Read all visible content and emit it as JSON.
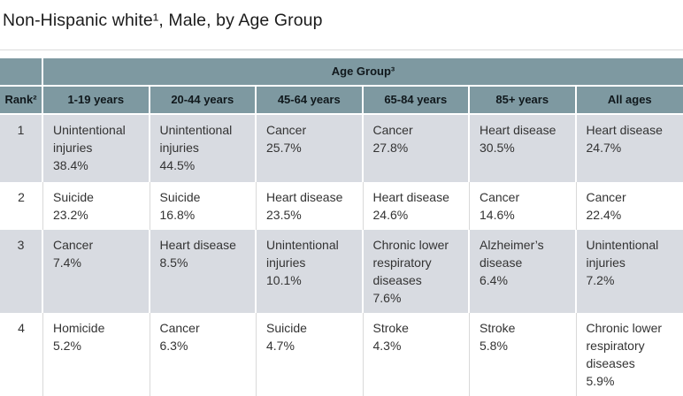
{
  "title": "Non-Hispanic white¹, Male, by Age Group",
  "colors": {
    "header_bg": "#7E99A1",
    "alt_row_bg": "#D8DBE1",
    "row_bg": "#FFFFFF",
    "body_text": "#333333",
    "header_text": "#10181C",
    "divider": "#DCDCDC"
  },
  "chart_data": {
    "type": "table",
    "title": "Non-Hispanic white¹, Male, by Age Group",
    "group_header": "Age Group³",
    "rank_header": "Rank²",
    "age_columns": [
      "1-19 years",
      "20-44 years",
      "45-64 years",
      "65-84 years",
      "85+ years",
      "All ages"
    ],
    "rows": [
      {
        "rank": "1",
        "cells": [
          {
            "cause": "Unintentional injuries",
            "pct": "38.4%"
          },
          {
            "cause": "Unintentional injuries",
            "pct": "44.5%"
          },
          {
            "cause": "Cancer",
            "pct": "25.7%"
          },
          {
            "cause": "Cancer",
            "pct": "27.8%"
          },
          {
            "cause": "Heart disease",
            "pct": "30.5%"
          },
          {
            "cause": "Heart disease",
            "pct": "24.7%"
          }
        ]
      },
      {
        "rank": "2",
        "cells": [
          {
            "cause": "Suicide",
            "pct": "23.2%"
          },
          {
            "cause": "Suicide",
            "pct": "16.8%"
          },
          {
            "cause": "Heart disease",
            "pct": "23.5%"
          },
          {
            "cause": "Heart disease",
            "pct": "24.6%"
          },
          {
            "cause": "Cancer",
            "pct": "14.6%"
          },
          {
            "cause": "Cancer",
            "pct": "22.4%"
          }
        ]
      },
      {
        "rank": "3",
        "cells": [
          {
            "cause": "Cancer",
            "pct": "7.4%"
          },
          {
            "cause": "Heart disease",
            "pct": "8.5%"
          },
          {
            "cause": "Unintentional injuries",
            "pct": "10.1%"
          },
          {
            "cause": "Chronic lower respiratory diseases",
            "pct": "7.6%"
          },
          {
            "cause": "Alzheimer’s disease",
            "pct": "6.4%"
          },
          {
            "cause": "Unintentional injuries",
            "pct": "7.2%"
          }
        ]
      },
      {
        "rank": "4",
        "cells": [
          {
            "cause": "Homicide",
            "pct": "5.2%"
          },
          {
            "cause": "Cancer",
            "pct": "6.3%"
          },
          {
            "cause": "Suicide",
            "pct": "4.7%"
          },
          {
            "cause": "Stroke",
            "pct": "4.3%"
          },
          {
            "cause": "Stroke",
            "pct": "5.8%"
          },
          {
            "cause": "Chronic lower respiratory diseases",
            "pct": "5.9%"
          }
        ]
      }
    ]
  }
}
